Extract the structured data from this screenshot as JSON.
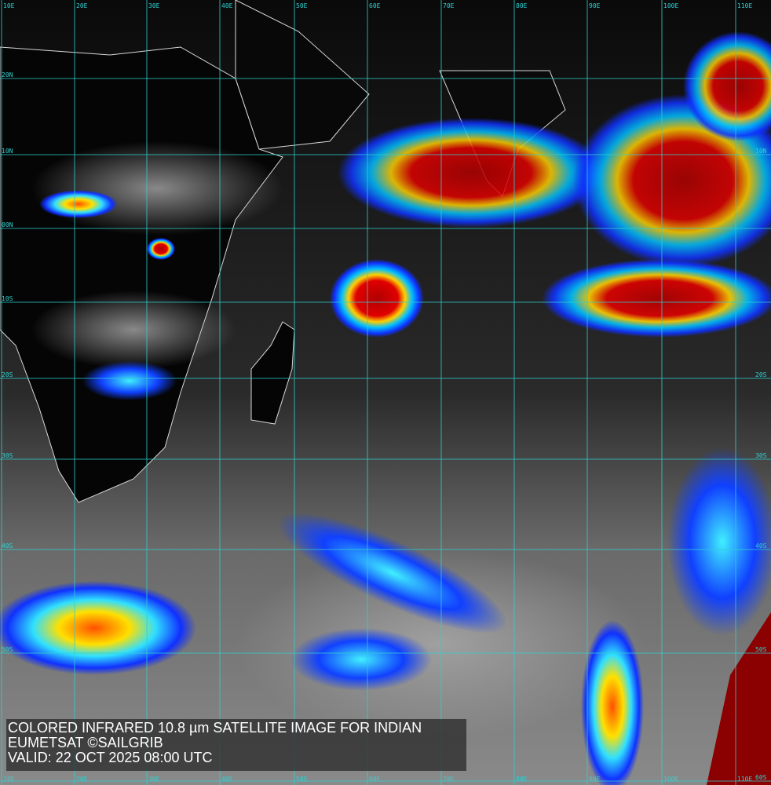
{
  "caption": {
    "title": "COLORED INFRARED 10.8 µm SATELLITE IMAGE FOR INDIAN",
    "credit": "EUMETSAT ©SAILGRIB",
    "valid": "VALID:  22 OCT 2025 08:00 UTC"
  },
  "grid": {
    "longitudes": [
      "10E",
      "20E",
      "30E",
      "40E",
      "50E",
      "60E",
      "70E",
      "80E",
      "90E",
      "100E",
      "110E"
    ],
    "latitudes_left": [
      "20N",
      "10N",
      "00N",
      "10S",
      "20S",
      "30S",
      "40S",
      "50S"
    ],
    "latitudes_right": [
      "10N",
      "20S",
      "30S",
      "40S",
      "50S",
      "60S"
    ],
    "color": "#2fd0d0"
  },
  "colors": {
    "land_border": "#d8d8d8",
    "cold_top": "#c00000",
    "mid": "#ffe000",
    "warm": "#2040ff"
  }
}
